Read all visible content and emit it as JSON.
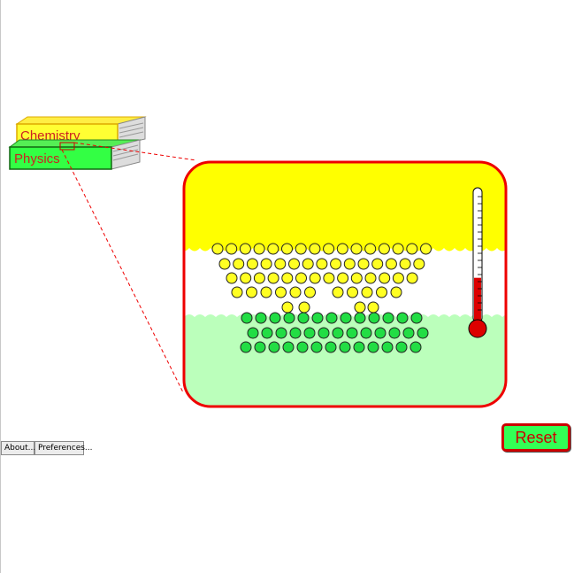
{
  "books": {
    "chemistry_label": "Chemistry",
    "physics_label": "Physics"
  },
  "container": {
    "top_phase_color": "#ffff00",
    "bottom_phase_color": "#bbffbb",
    "border_color": "#ee0000"
  },
  "molecules": {
    "yellow_color": "#ffff22",
    "green_color": "#22dd44"
  },
  "thermometer": {
    "level_fraction": 0.34,
    "fluid_color": "#dd0000"
  },
  "controls": {
    "reset_label": "Reset",
    "about_label": "About...",
    "preferences_label": "Preferences..."
  }
}
